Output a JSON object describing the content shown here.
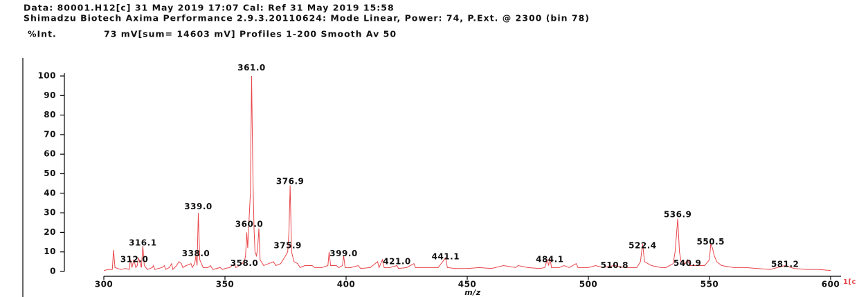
{
  "chart_data": {
    "type": "line",
    "header": [
      "Data: 80001.H12[c] 31 May 2019 17:07 Cal: Ref 31 May 2019 15:58",
      "Shimadzu Biotech Axima Performance 2.9.3.20110624: Mode Linear, Power: 74, P.Ext. @ 2300 (bin 78)"
    ],
    "ylabel": "%Int.",
    "subtitle": "73 mV[sum= 14603 mV]  Profiles 1-200 Smooth Av 50",
    "xlabel": "m/z",
    "edge_text": "1[c",
    "color": "#e8464b",
    "x": [
      300,
      302,
      303.5,
      304,
      304.6,
      307,
      309,
      310.5,
      311,
      311.6,
      312.4,
      313.2,
      313.8,
      314.3,
      315.5,
      316.1,
      316.7,
      318,
      320,
      320.5,
      321,
      324,
      325,
      325.5,
      327,
      328,
      328.5,
      330,
      331,
      332,
      332.6,
      334,
      336,
      336.5,
      337.5,
      338,
      338.5,
      339,
      339.6,
      341,
      343,
      344,
      345,
      348,
      349,
      350,
      352,
      354,
      354.5,
      356,
      358,
      358.5,
      359,
      359.4,
      360,
      360.5,
      361,
      361.3,
      361.6,
      362,
      362.4,
      363,
      363.5,
      364,
      364.5,
      366,
      368,
      370,
      371,
      373,
      375,
      375.9,
      376.4,
      376.9,
      377.5,
      378.5,
      380,
      381,
      383,
      386,
      387,
      390,
      392.5,
      393,
      393.6,
      396,
      397,
      398.5,
      399,
      399.6,
      402,
      405,
      406,
      410,
      413,
      413.6,
      415,
      415.7,
      418,
      421,
      421.6,
      425,
      428,
      428.6,
      432,
      436,
      438,
      441.1,
      441.8,
      445,
      450,
      455,
      460,
      465,
      470,
      471,
      475,
      480,
      482,
      483,
      483.6,
      484.1,
      484.8,
      488,
      490,
      492,
      495,
      495.7,
      500,
      503,
      506,
      510.8,
      515,
      520,
      521.5,
      522.4,
      523.2,
      526,
      530,
      532,
      535,
      535.8,
      536.9,
      537.6,
      538.3,
      540,
      540.9,
      542,
      545,
      548,
      550,
      550.5,
      551.2,
      552,
      553,
      555,
      560,
      565,
      570,
      575,
      581.2,
      585,
      590,
      595,
      600
    ],
    "values": [
      0.5,
      1,
      1,
      11,
      2,
      1,
      1.5,
      1,
      6,
      2,
      6,
      2,
      3,
      7,
      2,
      13,
      3,
      1,
      2,
      3,
      1,
      2,
      3,
      1,
      2,
      4,
      1,
      3,
      5,
      4,
      2,
      3,
      4,
      2,
      4,
      8,
      3,
      30,
      6,
      2,
      2,
      3,
      1,
      2,
      1,
      1.5,
      2,
      4,
      2,
      3,
      5,
      8,
      20,
      12,
      28,
      40,
      100,
      70,
      45,
      22,
      10,
      8,
      12,
      22,
      6,
      3,
      4,
      5,
      3,
      4,
      8,
      10,
      20,
      44,
      10,
      5,
      4,
      2,
      3,
      3,
      2,
      2,
      3,
      10,
      3,
      3,
      2,
      3,
      8,
      2,
      2,
      3,
      1.5,
      2,
      5,
      2,
      6,
      2,
      2,
      3,
      1.5,
      2,
      4,
      2,
      2,
      2,
      2,
      7,
      2,
      1.5,
      1.5,
      2,
      1.5,
      3,
      2,
      3,
      2,
      1.5,
      2,
      6,
      3,
      7,
      2,
      2,
      3,
      2,
      4,
      2,
      2,
      3,
      2,
      3,
      2,
      2,
      5,
      14,
      5,
      3,
      2,
      2,
      4,
      10,
      27,
      10,
      5,
      4,
      6,
      3,
      3,
      3,
      6,
      14,
      12,
      8,
      5,
      3,
      2,
      2,
      1.5,
      1,
      3,
      1.5,
      1,
      1,
      0.5
    ],
    "xlim": [
      300,
      600
    ],
    "xticks": [
      300,
      350,
      400,
      450,
      500,
      550,
      600
    ],
    "ylim": [
      0,
      100
    ],
    "yticks": [
      0,
      10,
      20,
      30,
      40,
      50,
      60,
      70,
      80,
      90,
      100
    ],
    "annotations": [
      {
        "text": "312.0",
        "x": 312.6,
        "y": 6
      },
      {
        "text": "316.1",
        "x": 316.1,
        "y": 14.5
      },
      {
        "text": "338.0",
        "x": 338.0,
        "y": 9
      },
      {
        "text": "339.0",
        "x": 339.0,
        "y": 33
      },
      {
        "text": "358.0",
        "x": 358.0,
        "y": 4
      },
      {
        "text": "360.0",
        "x": 360.0,
        "y": 24
      },
      {
        "text": "361.0",
        "x": 361.0,
        "y": 104
      },
      {
        "text": "375.9",
        "x": 375.9,
        "y": 13
      },
      {
        "text": "376.9",
        "x": 376.9,
        "y": 46
      },
      {
        "text": "399.0",
        "x": 399.0,
        "y": 9
      },
      {
        "text": "421.0",
        "x": 421.0,
        "y": 5
      },
      {
        "text": "441.1",
        "x": 441.1,
        "y": 7.5
      },
      {
        "text": "484.1",
        "x": 484.1,
        "y": 6
      },
      {
        "text": "510.8",
        "x": 510.8,
        "y": 3
      },
      {
        "text": "522.4",
        "x": 522.4,
        "y": 13
      },
      {
        "text": "536.9",
        "x": 536.9,
        "y": 29
      },
      {
        "text": "540.9",
        "x": 540.9,
        "y": 4
      },
      {
        "text": "550.5",
        "x": 550.5,
        "y": 15
      },
      {
        "text": "581.2",
        "x": 581.2,
        "y": 3.5
      }
    ]
  }
}
